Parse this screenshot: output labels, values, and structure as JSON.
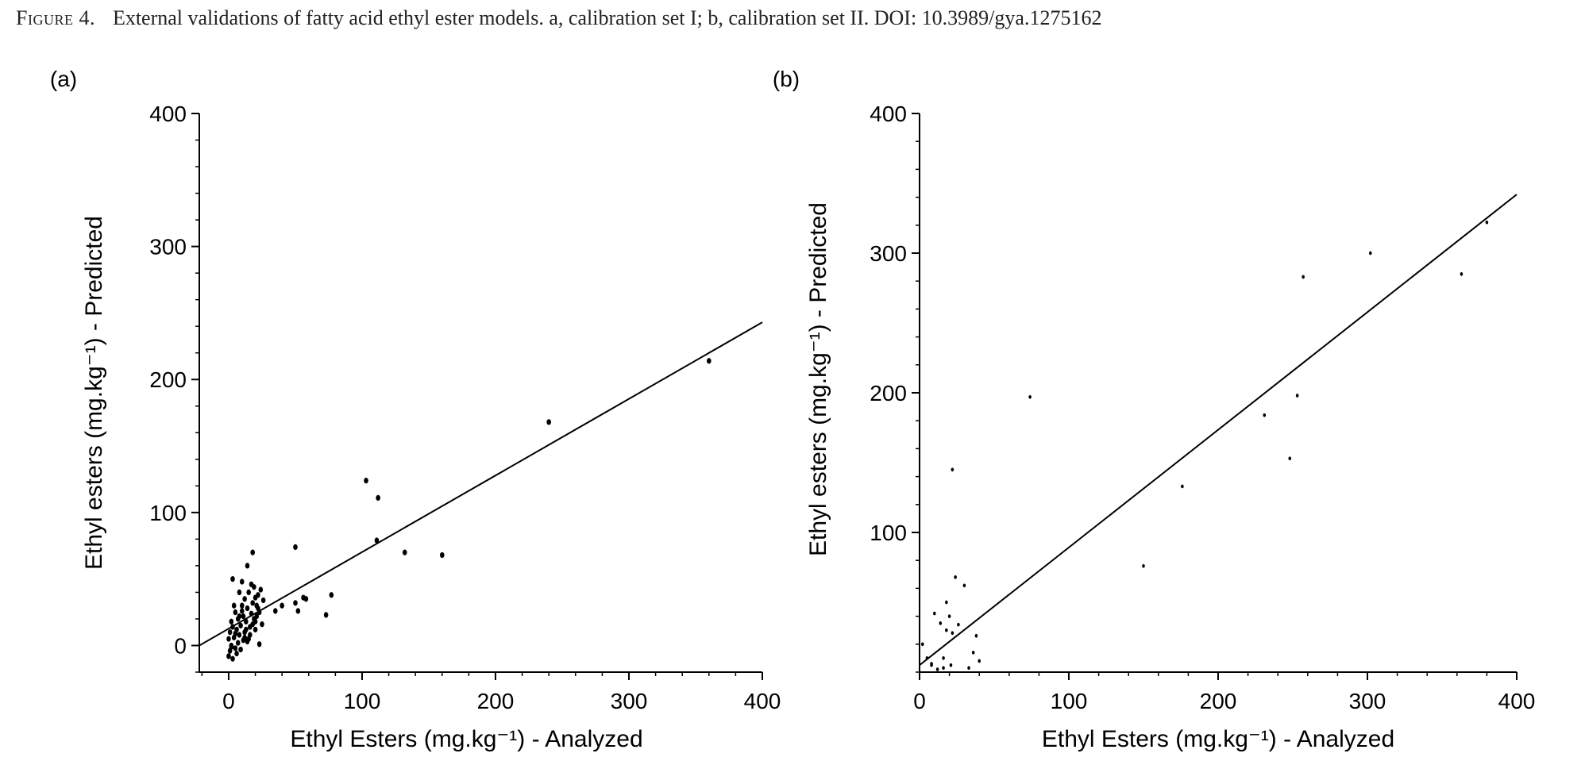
{
  "caption": {
    "label": "Figure 4.",
    "text": "External validations of fatty acid ethyl ester models. a, calibration set I; b, calibration set II. DOI: 10.3989/gya.1275162"
  },
  "chart_data": [
    {
      "type": "scatter",
      "panel_label": "(a)",
      "xlabel": "Ethyl Esters (mg.kg⁻¹) - Analyzed",
      "ylabel": "Ethyl esters (mg.kg⁻¹) - Predicted",
      "xlim": [
        -22,
        400
      ],
      "ylim": [
        -20,
        400
      ],
      "xticks": [
        0,
        100,
        200,
        300,
        400
      ],
      "yticks": [
        0,
        100,
        200,
        300,
        400
      ],
      "grid": false,
      "fit_line": {
        "from": [
          -22,
          0
        ],
        "to": [
          400,
          243
        ]
      },
      "points": [
        [
          0,
          -8
        ],
        [
          1,
          -4
        ],
        [
          2,
          0
        ],
        [
          0,
          5
        ],
        [
          1,
          10
        ],
        [
          3,
          14
        ],
        [
          2,
          18
        ],
        [
          4,
          6
        ],
        [
          5,
          -2
        ],
        [
          3,
          -10
        ],
        [
          6,
          12
        ],
        [
          7,
          20
        ],
        [
          5,
          25
        ],
        [
          8,
          8
        ],
        [
          9,
          15
        ],
        [
          10,
          30
        ],
        [
          7,
          2
        ],
        [
          11,
          22
        ],
        [
          12,
          10
        ],
        [
          13,
          18
        ],
        [
          14,
          28
        ],
        [
          12,
          35
        ],
        [
          15,
          5
        ],
        [
          16,
          14
        ],
        [
          17,
          24
        ],
        [
          15,
          40
        ],
        [
          18,
          32
        ],
        [
          19,
          20
        ],
        [
          20,
          12
        ],
        [
          21,
          30
        ],
        [
          22,
          38
        ],
        [
          24,
          42
        ],
        [
          23,
          25
        ],
        [
          25,
          16
        ],
        [
          26,
          34
        ],
        [
          6,
          -6
        ],
        [
          9,
          -3
        ],
        [
          11,
          4
        ],
        [
          4,
          30
        ],
        [
          8,
          40
        ],
        [
          10,
          26
        ],
        [
          13,
          12
        ],
        [
          16,
          8
        ],
        [
          19,
          44
        ],
        [
          20,
          36
        ],
        [
          17,
          46
        ],
        [
          14,
          3
        ],
        [
          18,
          16
        ],
        [
          21,
          22
        ],
        [
          22,
          28
        ],
        [
          3,
          50
        ],
        [
          10,
          48
        ],
        [
          14,
          60
        ],
        [
          18,
          70
        ],
        [
          23,
          1
        ],
        [
          20,
          18
        ],
        [
          12,
          6
        ],
        [
          8,
          22
        ],
        [
          5,
          9
        ],
        [
          2,
          -1
        ],
        [
          35,
          26
        ],
        [
          40,
          30
        ],
        [
          50,
          32
        ],
        [
          52,
          26
        ],
        [
          56,
          36
        ],
        [
          58,
          35
        ],
        [
          50,
          74
        ],
        [
          73,
          23
        ],
        [
          77,
          38
        ],
        [
          103,
          124
        ],
        [
          111,
          79
        ],
        [
          112,
          111
        ],
        [
          132,
          70
        ],
        [
          160,
          68
        ],
        [
          240,
          168
        ],
        [
          360,
          214
        ]
      ]
    },
    {
      "type": "scatter",
      "panel_label": "(b)",
      "xlabel": "Ethyl Esters (mg.kg⁻¹) - Analyzed",
      "ylabel": "Ethyl esters (mg.kg⁻¹) - Predicted",
      "xlim": [
        0,
        400
      ],
      "ylim": [
        0,
        400
      ],
      "xticks": [
        0,
        100,
        200,
        300,
        400
      ],
      "xtick_labels": [
        "0",
        "100",
        "200",
        "300",
        "400"
      ],
      "yticks": [
        100,
        200,
        300,
        400
      ],
      "grid": false,
      "fit_line": {
        "from": [
          0,
          5
        ],
        "to": [
          400,
          342
        ]
      },
      "points": [
        [
          2,
          20
        ],
        [
          5,
          10
        ],
        [
          8,
          6
        ],
        [
          10,
          42
        ],
        [
          12,
          2
        ],
        [
          14,
          35
        ],
        [
          16,
          10
        ],
        [
          18,
          30
        ],
        [
          18,
          50
        ],
        [
          20,
          40
        ],
        [
          21,
          5
        ],
        [
          22,
          145
        ],
        [
          22,
          28
        ],
        [
          24,
          68
        ],
        [
          26,
          34
        ],
        [
          30,
          62
        ],
        [
          33,
          3
        ],
        [
          36,
          14
        ],
        [
          38,
          26
        ],
        [
          40,
          8
        ],
        [
          74,
          197
        ],
        [
          150,
          76
        ],
        [
          176,
          133
        ],
        [
          231,
          184
        ],
        [
          248,
          153
        ],
        [
          253,
          198
        ],
        [
          257,
          283
        ],
        [
          302,
          300
        ],
        [
          363,
          285
        ],
        [
          380,
          322
        ],
        [
          8,
          5
        ],
        [
          16,
          3
        ]
      ]
    }
  ]
}
